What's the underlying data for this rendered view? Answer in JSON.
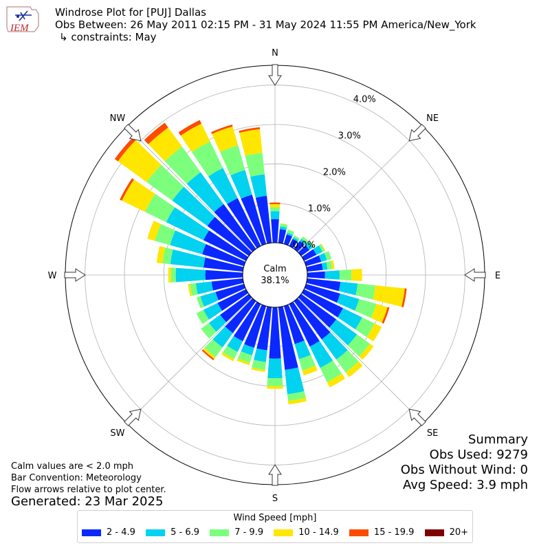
{
  "header": {
    "logo_text": "IEM",
    "title": "Windrose Plot for [PUJ] Dallas",
    "obs_between": "Obs Between: 26 May 2011 02:15 PM - 31 May 2024 11:55 PM America/New_York",
    "constraints": "↳ constraints: May"
  },
  "footer": {
    "calm_note": "Calm values are < 2.0 mph",
    "bar_convention": "Bar Convention: Meteorology",
    "flow_note": "Flow arrows relative to plot center.",
    "generated": "Generated: 23 Mar 2025"
  },
  "summary": {
    "title": "Summary",
    "obs_used": "Obs Used: 9279",
    "obs_without_wind": "Obs Without Wind: 0",
    "avg_speed": "Avg Speed: 3.9 mph"
  },
  "colors": {
    "bins": [
      "#0a28ff",
      "#00d2f0",
      "#7cff7c",
      "#ffe600",
      "#ff4a00",
      "#800000"
    ]
  },
  "chart_data": {
    "type": "windrose",
    "calm_label": "Calm",
    "calm_value": "38.1%",
    "radial_ticks": [
      0,
      1,
      2,
      3,
      4
    ],
    "radial_tick_labels": [
      "0.0%",
      "1.0%",
      "2.0%",
      "3.0%",
      "4.0%"
    ],
    "rmax": 4.5,
    "directions": [
      "N",
      "NE",
      "E",
      "SE",
      "S",
      "SW",
      "W",
      "NW"
    ],
    "legend_title": "Wind Speed [mph]",
    "bins": [
      "2 - 4.9",
      "5 - 6.9",
      "7 - 9.9",
      "10 - 14.9",
      "15 - 19.9",
      "20+"
    ],
    "sector_directions_deg": [
      0,
      10,
      20,
      30,
      40,
      50,
      60,
      70,
      80,
      90,
      100,
      110,
      120,
      130,
      140,
      150,
      160,
      170,
      180,
      190,
      200,
      210,
      220,
      230,
      240,
      250,
      260,
      270,
      280,
      290,
      300,
      310,
      320,
      330,
      340,
      350
    ],
    "values": [
      [
        0.6,
        0.2,
        0.1,
        0.08,
        0.04,
        0.0
      ],
      [
        0.35,
        0.07,
        0.07,
        0.01,
        0.0,
        0.0
      ],
      [
        0.25,
        0.05,
        0.08,
        0.0,
        0.0,
        0.0
      ],
      [
        0.2,
        0.05,
        0.05,
        0.0,
        0.0,
        0.0
      ],
      [
        0.25,
        0.07,
        0.07,
        0.0,
        0.0,
        0.0
      ],
      [
        0.26,
        0.11,
        0.05,
        0.0,
        0.0,
        0.0
      ],
      [
        0.35,
        0.17,
        0.06,
        0.02,
        0.0,
        0.0
      ],
      [
        0.4,
        0.15,
        0.12,
        0.0,
        0.0,
        0.0
      ],
      [
        0.4,
        0.12,
        0.12,
        0.06,
        0.0,
        0.0
      ],
      [
        0.45,
        0.37,
        0.3,
        0.27,
        0.0,
        0.0
      ],
      [
        0.85,
        0.44,
        0.45,
        0.75,
        0.05,
        0.0
      ],
      [
        0.9,
        0.5,
        0.45,
        0.3,
        0.05,
        0.0
      ],
      [
        1.1,
        0.54,
        0.35,
        0.2,
        0.0,
        0.0
      ],
      [
        1.1,
        0.65,
        0.4,
        0.12,
        0.0,
        0.0
      ],
      [
        1.2,
        0.63,
        0.4,
        0.15,
        0.0,
        0.0
      ],
      [
        1.2,
        0.6,
        0.4,
        0.15,
        0.0,
        0.0
      ],
      [
        1.0,
        0.4,
        0.3,
        0.13,
        0.0,
        0.0
      ],
      [
        1.6,
        0.62,
        0.17,
        0.09,
        0.0,
        0.0
      ],
      [
        1.3,
        0.5,
        0.2,
        0.07,
        0.0,
        0.0
      ],
      [
        1.1,
        0.3,
        0.2,
        0.05,
        0.0,
        0.0
      ],
      [
        1.1,
        0.2,
        0.2,
        0.06,
        0.0,
        0.0
      ],
      [
        1.05,
        0.3,
        0.2,
        0.06,
        0.0,
        0.0
      ],
      [
        1.0,
        0.45,
        0.3,
        0.06,
        0.04,
        0.0
      ],
      [
        0.9,
        0.35,
        0.25,
        0.0,
        0.0,
        0.0
      ],
      [
        0.8,
        0.4,
        0.2,
        0.0,
        0.0,
        0.0
      ],
      [
        0.75,
        0.4,
        0.1,
        0.0,
        0.0,
        0.0
      ],
      [
        0.8,
        0.4,
        0.15,
        0.05,
        0.0,
        0.0
      ],
      [
        0.95,
        0.75,
        0.12,
        0.07,
        0.0,
        0.0
      ],
      [
        1.0,
        0.85,
        0.2,
        0.15,
        0.0,
        0.0
      ],
      [
        1.1,
        0.85,
        0.4,
        0.2,
        0.0,
        0.0
      ],
      [
        1.2,
        1.05,
        0.6,
        0.65,
        0.06,
        0.0
      ],
      [
        1.3,
        1.1,
        0.8,
        0.9,
        0.1,
        0.0
      ],
      [
        1.4,
        1.0,
        0.8,
        0.6,
        0.15,
        0.0
      ],
      [
        1.35,
        0.85,
        0.75,
        0.5,
        0.1,
        0.0
      ],
      [
        1.3,
        0.65,
        0.65,
        0.5,
        0.05,
        0.0
      ],
      [
        1.2,
        0.55,
        0.55,
        0.6,
        0.05,
        0.0
      ]
    ]
  }
}
